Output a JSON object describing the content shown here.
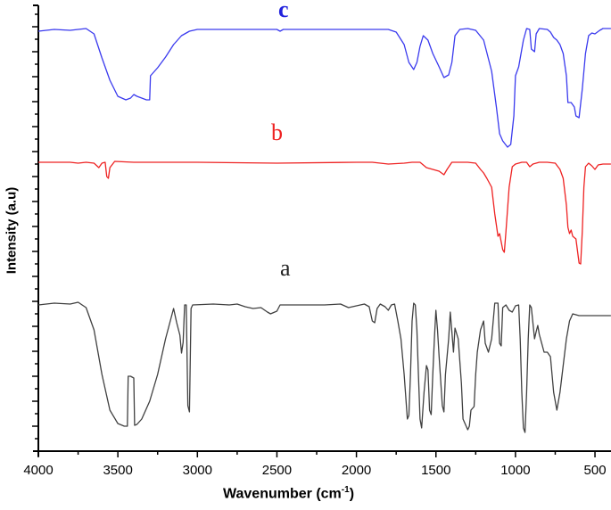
{
  "chart_data": {
    "type": "line",
    "title": "",
    "xlabel": "Wavenumber (cm-1)",
    "xlabel_main": "Wavenumber (cm",
    "xlabel_sup": "-1",
    "xlabel_close": ")",
    "ylabel": "Intensity (a.u)",
    "xlim": [
      4000,
      400
    ],
    "x_reversed": true,
    "x_ticks": [
      4000,
      3500,
      3000,
      2500,
      2000,
      1500,
      1000,
      500
    ],
    "x_tick_labels": [
      "4000",
      "3500",
      "3000",
      "2500",
      "2000",
      "1500",
      "1000",
      "500"
    ],
    "y_ticks_shown": false,
    "grid": false,
    "legend": "inline labels",
    "series": [
      {
        "name": "c",
        "color": "#3a3aee",
        "label_pos": [
          1900,
          "top"
        ],
        "points": [
          [
            4000,
            35
          ],
          [
            3900,
            33
          ],
          [
            3800,
            34
          ],
          [
            3700,
            32
          ],
          [
            3650,
            38
          ],
          [
            3600,
            65
          ],
          [
            3550,
            90
          ],
          [
            3500,
            108
          ],
          [
            3450,
            112
          ],
          [
            3420,
            110
          ],
          [
            3400,
            106
          ],
          [
            3380,
            108
          ],
          [
            3350,
            110
          ],
          [
            3320,
            112
          ],
          [
            3300,
            112
          ],
          [
            3295,
            85
          ],
          [
            3250,
            76
          ],
          [
            3200,
            64
          ],
          [
            3150,
            50
          ],
          [
            3100,
            40
          ],
          [
            3050,
            35
          ],
          [
            3000,
            33
          ],
          [
            2500,
            33
          ],
          [
            2480,
            35
          ],
          [
            2460,
            33
          ],
          [
            2000,
            33
          ],
          [
            1800,
            33
          ],
          [
            1750,
            36
          ],
          [
            1700,
            50
          ],
          [
            1670,
            70
          ],
          [
            1640,
            78
          ],
          [
            1620,
            70
          ],
          [
            1600,
            52
          ],
          [
            1580,
            40
          ],
          [
            1550,
            45
          ],
          [
            1520,
            60
          ],
          [
            1480,
            75
          ],
          [
            1450,
            87
          ],
          [
            1420,
            84
          ],
          [
            1400,
            70
          ],
          [
            1380,
            40
          ],
          [
            1350,
            33
          ],
          [
            1300,
            32
          ],
          [
            1250,
            34
          ],
          [
            1200,
            45
          ],
          [
            1150,
            80
          ],
          [
            1120,
            120
          ],
          [
            1100,
            150
          ],
          [
            1080,
            158
          ],
          [
            1050,
            165
          ],
          [
            1030,
            162
          ],
          [
            1010,
            130
          ],
          [
            1000,
            85
          ],
          [
            980,
            75
          ],
          [
            950,
            45
          ],
          [
            930,
            32
          ],
          [
            910,
            33
          ],
          [
            900,
            55
          ],
          [
            880,
            58
          ],
          [
            870,
            38
          ],
          [
            850,
            32
          ],
          [
            800,
            33
          ],
          [
            780,
            36
          ],
          [
            760,
            42
          ],
          [
            740,
            45
          ],
          [
            720,
            50
          ],
          [
            700,
            60
          ],
          [
            680,
            85
          ],
          [
            670,
            115
          ],
          [
            650,
            115
          ],
          [
            630,
            120
          ],
          [
            620,
            130
          ],
          [
            600,
            132
          ],
          [
            580,
            100
          ],
          [
            560,
            60
          ],
          [
            540,
            40
          ],
          [
            520,
            37
          ],
          [
            500,
            38
          ],
          [
            470,
            34
          ],
          [
            450,
            32
          ],
          [
            400,
            32
          ]
        ]
      },
      {
        "name": "b",
        "color": "#ee2222",
        "label_pos": [
          1900,
          "middle"
        ],
        "points": [
          [
            4000,
            182
          ],
          [
            3800,
            182
          ],
          [
            3750,
            183
          ],
          [
            3700,
            182
          ],
          [
            3650,
            183
          ],
          [
            3620,
            188
          ],
          [
            3600,
            183
          ],
          [
            3580,
            182
          ],
          [
            3570,
            198
          ],
          [
            3560,
            200
          ],
          [
            3550,
            188
          ],
          [
            3520,
            181
          ],
          [
            3400,
            182
          ],
          [
            3000,
            182
          ],
          [
            2500,
            183
          ],
          [
            2000,
            182
          ],
          [
            1900,
            182
          ],
          [
            1800,
            184
          ],
          [
            1700,
            183
          ],
          [
            1650,
            182
          ],
          [
            1600,
            182
          ],
          [
            1560,
            188
          ],
          [
            1520,
            190
          ],
          [
            1480,
            192
          ],
          [
            1450,
            196
          ],
          [
            1430,
            190
          ],
          [
            1400,
            182
          ],
          [
            1350,
            182
          ],
          [
            1300,
            182
          ],
          [
            1250,
            183
          ],
          [
            1220,
            190
          ],
          [
            1200,
            194
          ],
          [
            1180,
            200
          ],
          [
            1150,
            210
          ],
          [
            1130,
            240
          ],
          [
            1110,
            265
          ],
          [
            1100,
            262
          ],
          [
            1080,
            280
          ],
          [
            1070,
            283
          ],
          [
            1060,
            260
          ],
          [
            1040,
            210
          ],
          [
            1020,
            187
          ],
          [
            1000,
            184
          ],
          [
            960,
            182
          ],
          [
            930,
            182
          ],
          [
            910,
            187
          ],
          [
            890,
            184
          ],
          [
            850,
            182
          ],
          [
            800,
            182
          ],
          [
            750,
            183
          ],
          [
            720,
            190
          ],
          [
            700,
            200
          ],
          [
            680,
            230
          ],
          [
            670,
            255
          ],
          [
            660,
            262
          ],
          [
            650,
            258
          ],
          [
            640,
            265
          ],
          [
            620,
            268
          ],
          [
            600,
            295
          ],
          [
            590,
            296
          ],
          [
            580,
            260
          ],
          [
            570,
            210
          ],
          [
            560,
            187
          ],
          [
            540,
            183
          ],
          [
            520,
            186
          ],
          [
            500,
            190
          ],
          [
            480,
            185
          ],
          [
            450,
            184
          ],
          [
            400,
            184
          ]
        ]
      },
      {
        "name": "a",
        "color": "#404040",
        "label_pos": [
          1900,
          "lower"
        ],
        "points": [
          [
            4000,
            342
          ],
          [
            3900,
            340
          ],
          [
            3800,
            341
          ],
          [
            3750,
            339
          ],
          [
            3700,
            345
          ],
          [
            3650,
            370
          ],
          [
            3600,
            420
          ],
          [
            3550,
            460
          ],
          [
            3500,
            475
          ],
          [
            3460,
            478
          ],
          [
            3440,
            478
          ],
          [
            3435,
            422
          ],
          [
            3420,
            422
          ],
          [
            3400,
            424
          ],
          [
            3395,
            477
          ],
          [
            3380,
            476
          ],
          [
            3350,
            470
          ],
          [
            3300,
            450
          ],
          [
            3250,
            420
          ],
          [
            3200,
            380
          ],
          [
            3150,
            346
          ],
          [
            3130,
            362
          ],
          [
            3110,
            376
          ],
          [
            3100,
            396
          ],
          [
            3090,
            384
          ],
          [
            3080,
            342
          ],
          [
            3070,
            342
          ],
          [
            3060,
            455
          ],
          [
            3050,
            462
          ],
          [
            3040,
            346
          ],
          [
            3030,
            342
          ],
          [
            2900,
            341
          ],
          [
            2800,
            342
          ],
          [
            2750,
            341
          ],
          [
            2700,
            344
          ],
          [
            2650,
            346
          ],
          [
            2600,
            345
          ],
          [
            2560,
            350
          ],
          [
            2540,
            352
          ],
          [
            2500,
            349
          ],
          [
            2480,
            342
          ],
          [
            2400,
            342
          ],
          [
            2300,
            342
          ],
          [
            2200,
            342
          ],
          [
            2100,
            341
          ],
          [
            2050,
            345
          ],
          [
            2000,
            343
          ],
          [
            1950,
            341
          ],
          [
            1920,
            344
          ],
          [
            1900,
            360
          ],
          [
            1885,
            362
          ],
          [
            1870,
            346
          ],
          [
            1850,
            341
          ],
          [
            1820,
            344
          ],
          [
            1800,
            348
          ],
          [
            1780,
            342
          ],
          [
            1760,
            341
          ],
          [
            1740,
            360
          ],
          [
            1720,
            380
          ],
          [
            1700,
            420
          ],
          [
            1680,
            470
          ],
          [
            1670,
            466
          ],
          [
            1660,
            420
          ],
          [
            1650,
            360
          ],
          [
            1640,
            340
          ],
          [
            1630,
            342
          ],
          [
            1620,
            370
          ],
          [
            1610,
            420
          ],
          [
            1600,
            470
          ],
          [
            1590,
            480
          ],
          [
            1575,
            440
          ],
          [
            1560,
            410
          ],
          [
            1550,
            415
          ],
          [
            1540,
            460
          ],
          [
            1530,
            465
          ],
          [
            1520,
            420
          ],
          [
            1510,
            380
          ],
          [
            1500,
            348
          ],
          [
            1490,
            370
          ],
          [
            1480,
            400
          ],
          [
            1460,
            455
          ],
          [
            1450,
            462
          ],
          [
            1440,
            420
          ],
          [
            1420,
            380
          ],
          [
            1410,
            350
          ],
          [
            1400,
            372
          ],
          [
            1390,
            395
          ],
          [
            1380,
            368
          ],
          [
            1360,
            380
          ],
          [
            1340,
            430
          ],
          [
            1330,
            470
          ],
          [
            1300,
            482
          ],
          [
            1290,
            478
          ],
          [
            1280,
            460
          ],
          [
            1260,
            456
          ],
          [
            1250,
            420
          ],
          [
            1240,
            395
          ],
          [
            1220,
            370
          ],
          [
            1200,
            360
          ],
          [
            1190,
            385
          ],
          [
            1170,
            395
          ],
          [
            1150,
            380
          ],
          [
            1130,
            340
          ],
          [
            1110,
            340
          ],
          [
            1100,
            385
          ],
          [
            1090,
            388
          ],
          [
            1080,
            345
          ],
          [
            1060,
            342
          ],
          [
            1040,
            348
          ],
          [
            1020,
            350
          ],
          [
            1000,
            343
          ],
          [
            980,
            342
          ],
          [
            970,
            380
          ],
          [
            960,
            440
          ],
          [
            950,
            480
          ],
          [
            940,
            485
          ],
          [
            930,
            440
          ],
          [
            920,
            380
          ],
          [
            910,
            342
          ],
          [
            900,
            345
          ],
          [
            880,
            380
          ],
          [
            870,
            372
          ],
          [
            860,
            365
          ],
          [
            850,
            375
          ],
          [
            820,
            395
          ],
          [
            800,
            395
          ],
          [
            780,
            400
          ],
          [
            760,
            440
          ],
          [
            740,
            460
          ],
          [
            720,
            440
          ],
          [
            700,
            410
          ],
          [
            680,
            380
          ],
          [
            660,
            360
          ],
          [
            650,
            356
          ],
          [
            640,
            352
          ],
          [
            600,
            354
          ],
          [
            400,
            354
          ]
        ]
      }
    ]
  },
  "labels": {
    "c": "c",
    "b": "b",
    "a": "a"
  }
}
